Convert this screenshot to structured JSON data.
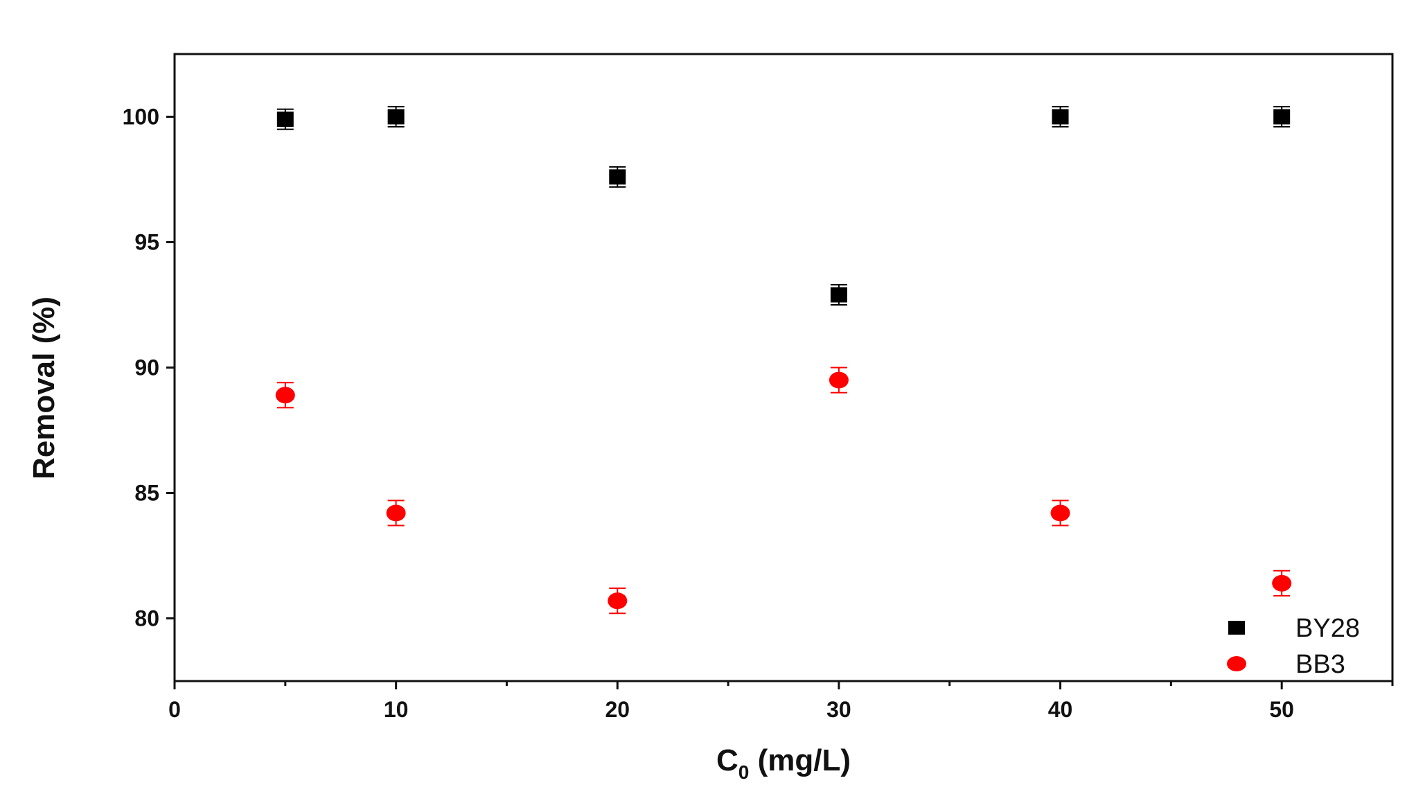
{
  "chart_data": {
    "type": "scatter",
    "title": "",
    "xlabel": {
      "main": "C",
      "sub": "0",
      "rest": " (mg/L)"
    },
    "ylabel": "Removal (%)",
    "xlim": [
      0,
      55
    ],
    "ylim": [
      77.5,
      102.5
    ],
    "x_ticks": [
      0,
      10,
      20,
      30,
      40,
      50
    ],
    "x_minor_ticks": [
      5,
      15,
      25,
      35,
      45,
      55
    ],
    "y_ticks": [
      80,
      85,
      90,
      95,
      100
    ],
    "grid": false,
    "legend_position": "bottom-right",
    "series": [
      {
        "name": "BY28",
        "marker": "square",
        "color": "#000000",
        "x": [
          5,
          10,
          20,
          30,
          40,
          50
        ],
        "y": [
          99.9,
          100.0,
          97.6,
          92.9,
          100.0,
          100.0
        ],
        "error": [
          0.4,
          0.4,
          0.4,
          0.4,
          0.4,
          0.4
        ]
      },
      {
        "name": "BB3",
        "marker": "circle",
        "color": "#ff0000",
        "x": [
          5,
          10,
          20,
          30,
          40,
          50
        ],
        "y": [
          88.9,
          84.2,
          80.7,
          89.5,
          84.2,
          81.4
        ],
        "error": [
          0.5,
          0.5,
          0.5,
          0.5,
          0.5,
          0.5
        ]
      }
    ]
  }
}
